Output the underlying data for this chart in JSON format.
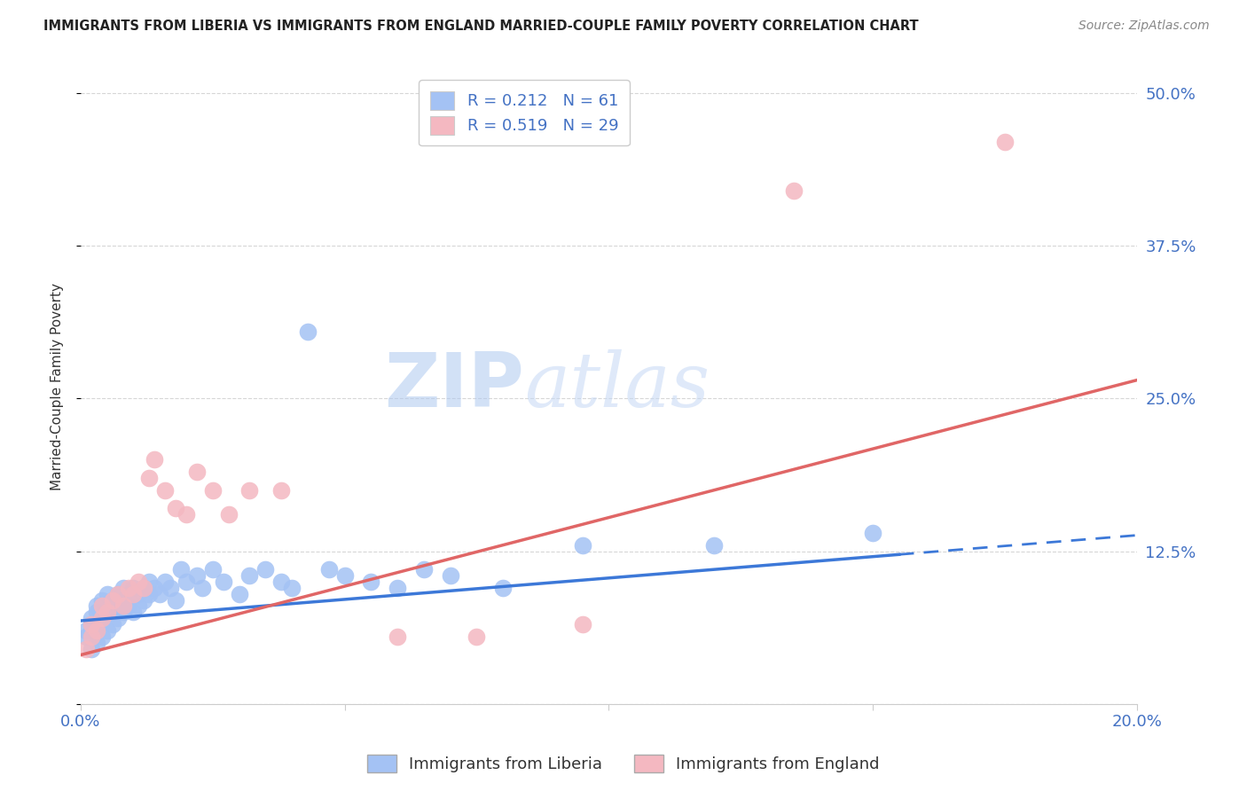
{
  "title": "IMMIGRANTS FROM LIBERIA VS IMMIGRANTS FROM ENGLAND MARRIED-COUPLE FAMILY POVERTY CORRELATION CHART",
  "source": "Source: ZipAtlas.com",
  "ylabel": "Married-Couple Family Poverty",
  "xlim": [
    0.0,
    0.2
  ],
  "ylim": [
    0.0,
    0.52
  ],
  "liberia_color": "#a4c2f4",
  "england_color": "#f4b8c1",
  "liberia_line_color": "#3c78d8",
  "england_line_color": "#e06666",
  "R_liberia": 0.212,
  "N_liberia": 61,
  "R_england": 0.519,
  "N_england": 29,
  "legend_label_liberia": "Immigrants from Liberia",
  "legend_label_england": "Immigrants from England",
  "watermark_zip": "ZIP",
  "watermark_atlas": "atlas",
  "background_color": "#ffffff",
  "grid_color": "#cccccc",
  "liberia_x": [
    0.001,
    0.001,
    0.002,
    0.002,
    0.002,
    0.003,
    0.003,
    0.003,
    0.003,
    0.004,
    0.004,
    0.004,
    0.005,
    0.005,
    0.005,
    0.006,
    0.006,
    0.006,
    0.007,
    0.007,
    0.007,
    0.008,
    0.008,
    0.008,
    0.009,
    0.009,
    0.01,
    0.01,
    0.011,
    0.011,
    0.012,
    0.012,
    0.013,
    0.013,
    0.014,
    0.015,
    0.016,
    0.017,
    0.018,
    0.019,
    0.02,
    0.022,
    0.023,
    0.025,
    0.027,
    0.03,
    0.032,
    0.035,
    0.038,
    0.04,
    0.043,
    0.047,
    0.05,
    0.055,
    0.06,
    0.065,
    0.07,
    0.08,
    0.095,
    0.12,
    0.15
  ],
  "liberia_y": [
    0.055,
    0.06,
    0.045,
    0.065,
    0.07,
    0.05,
    0.06,
    0.075,
    0.08,
    0.055,
    0.07,
    0.085,
    0.06,
    0.075,
    0.09,
    0.065,
    0.075,
    0.085,
    0.07,
    0.08,
    0.09,
    0.075,
    0.085,
    0.095,
    0.08,
    0.09,
    0.075,
    0.095,
    0.08,
    0.09,
    0.085,
    0.095,
    0.09,
    0.1,
    0.095,
    0.09,
    0.1,
    0.095,
    0.085,
    0.11,
    0.1,
    0.105,
    0.095,
    0.11,
    0.1,
    0.09,
    0.105,
    0.11,
    0.1,
    0.095,
    0.305,
    0.11,
    0.105,
    0.1,
    0.095,
    0.11,
    0.105,
    0.095,
    0.13,
    0.13,
    0.14
  ],
  "england_x": [
    0.001,
    0.002,
    0.002,
    0.003,
    0.004,
    0.004,
    0.005,
    0.006,
    0.007,
    0.008,
    0.009,
    0.01,
    0.011,
    0.012,
    0.013,
    0.014,
    0.016,
    0.018,
    0.02,
    0.022,
    0.025,
    0.028,
    0.032,
    0.038,
    0.06,
    0.075,
    0.095,
    0.135,
    0.175
  ],
  "england_y": [
    0.045,
    0.055,
    0.065,
    0.06,
    0.07,
    0.08,
    0.075,
    0.085,
    0.09,
    0.08,
    0.095,
    0.09,
    0.1,
    0.095,
    0.185,
    0.2,
    0.175,
    0.16,
    0.155,
    0.19,
    0.175,
    0.155,
    0.175,
    0.175,
    0.055,
    0.055,
    0.065,
    0.42,
    0.46
  ],
  "liberia_line_x": [
    0.0,
    0.2
  ],
  "liberia_line_y": [
    0.068,
    0.138
  ],
  "england_line_x": [
    0.0,
    0.2
  ],
  "england_line_y": [
    0.04,
    0.265
  ]
}
